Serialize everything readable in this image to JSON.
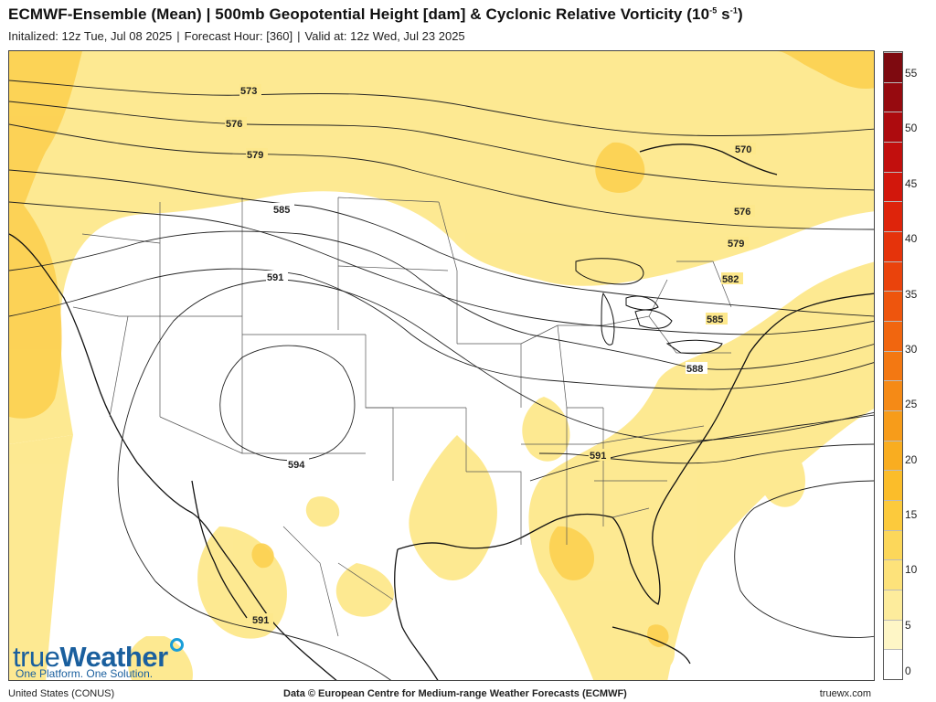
{
  "header": {
    "title_main": "ECMWF-Ensemble (Mean) | 500mb Geopotential Height [dam] & Cyclonic Relative Vorticity (10",
    "title_exp": "-5",
    "title_mid": " s",
    "title_exp2": "-1",
    "title_end": ")",
    "init": "Initalized: 12z Tue, Jul 08 2025",
    "forecast_hour": "Forecast Hour: [360]",
    "valid": "Valid at: 12z Wed, Jul 23 2025",
    "separator": "|"
  },
  "colors": {
    "land_border": "#111111",
    "state_border": "#555555",
    "contour": "#222222",
    "brand": "#1a5f9e"
  },
  "colorbar": {
    "labels": [
      "0",
      "5",
      "10",
      "15",
      "20",
      "25",
      "30",
      "35",
      "40",
      "45",
      "50",
      "55"
    ],
    "min": 0,
    "max": 57,
    "swatches": [
      "#ffffff",
      "#fef6c6",
      "#fdec9c",
      "#fde27a",
      "#fcd75a",
      "#fcca3c",
      "#fbbd2a",
      "#f9ad20",
      "#f79c1a",
      "#f58a16",
      "#f37812",
      "#f1660f",
      "#ee550d",
      "#ea430c",
      "#e5330b",
      "#de240b",
      "#d2170c",
      "#c20f0d",
      "#ad0b0e",
      "#960a0f",
      "#7e0a10"
    ]
  },
  "contours": [
    {
      "label": "573"
    },
    {
      "label": "576"
    },
    {
      "label": "579"
    },
    {
      "label": "585"
    },
    {
      "label": "591"
    },
    {
      "label": "594"
    },
    {
      "label": "570"
    },
    {
      "label": "576"
    },
    {
      "label": "579"
    },
    {
      "label": "582"
    },
    {
      "label": "585"
    },
    {
      "label": "588"
    },
    {
      "label": "591"
    },
    {
      "label": "591"
    }
  ],
  "logo": {
    "true": "true",
    "weather": "Weather",
    "tagline": "One Platform. One Solution."
  },
  "footer": {
    "region": "United States (CONUS)",
    "credit": "Data © European Centre for Medium-range Weather Forecasts (ECMWF)",
    "site": "truewx.com"
  }
}
